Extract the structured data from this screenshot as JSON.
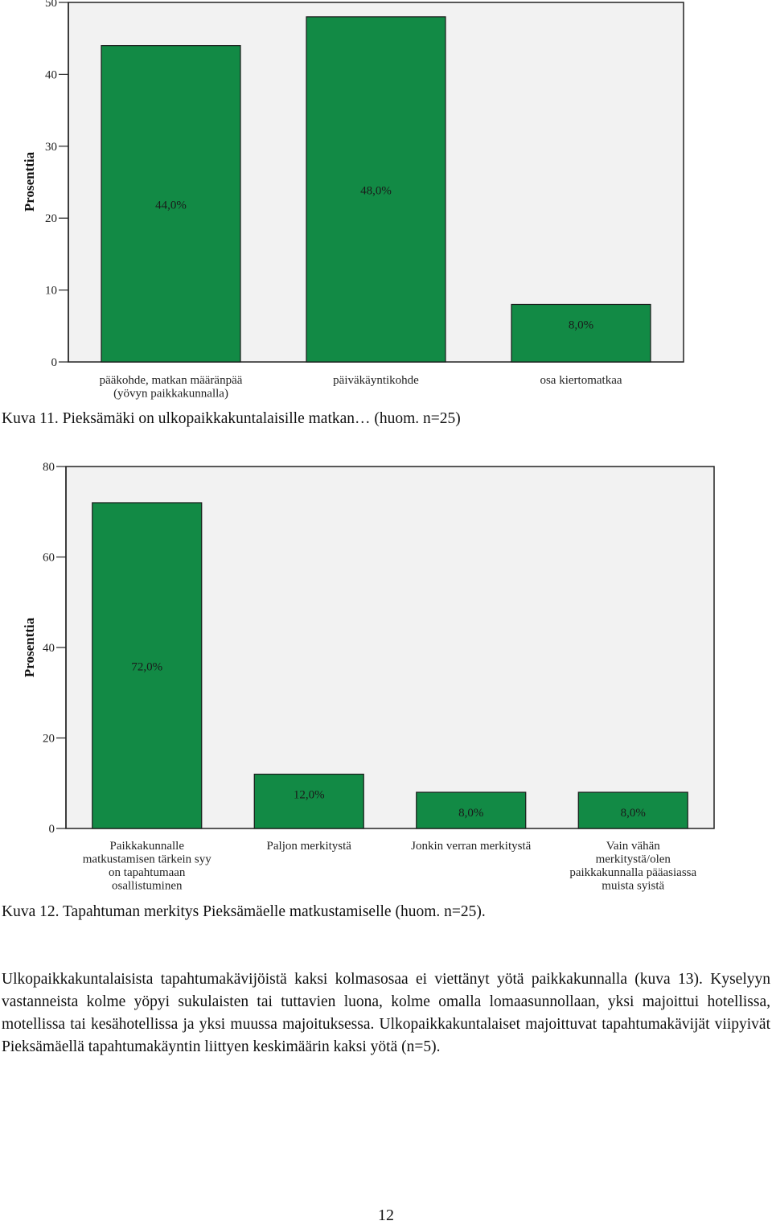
{
  "chart_data": [
    {
      "type": "bar",
      "categories": [
        "pääkohde, matkan määränpää (yövyn paikkakunnalla)",
        "päiväkäyntikohde",
        "osa kiertomatkaa"
      ],
      "category_lines": [
        [
          "pääkohde, matkan määränpää",
          "(yövyn paikkakunnalla)"
        ],
        [
          "päiväkäyntikohde"
        ],
        [
          "osa kiertomatkaa"
        ]
      ],
      "values": [
        44.0,
        48.0,
        8.0
      ],
      "data_labels": [
        "44,0%",
        "48,0%",
        "8,0%"
      ],
      "ylabel": "Prosenttia",
      "ylim": [
        0,
        50
      ],
      "yticks": [
        0,
        10,
        20,
        30,
        40,
        50
      ],
      "bar_color": "#128a45",
      "plot_background": "#f2f2f2"
    },
    {
      "type": "bar",
      "categories": [
        "Paikkakunnalle matkustamisen tärkein syy on tapahtumaan osallistuminen",
        "Paljon merkitystä",
        "Jonkin verran merkitystä",
        "Vain vähän merkitystä/olen paikkakunnalla pääasiassa muista syistä"
      ],
      "category_lines": [
        [
          "Paikkakunnalle",
          "matkustamisen tärkein syy",
          "on tapahtumaan",
          "osallistuminen"
        ],
        [
          "Paljon merkitystä"
        ],
        [
          "Jonkin verran merkitystä"
        ],
        [
          "Vain vähän",
          "merkitystä/olen",
          "paikkakunnalla pääasiassa",
          "muista syistä"
        ]
      ],
      "values": [
        72.0,
        12.0,
        8.0,
        8.0
      ],
      "data_labels": [
        "72,0%",
        "12,0%",
        "8,0%",
        "8,0%"
      ],
      "ylabel": "Prosenttia",
      "ylim": [
        0,
        80
      ],
      "yticks": [
        0,
        20,
        40,
        60,
        80
      ],
      "bar_color": "#128a45",
      "plot_background": "#f2f2f2"
    }
  ],
  "captions": {
    "fig11": "Kuva 11. Pieksämäki on ulkopaikkakuntalaisille matkan… (huom. n=25)",
    "fig12": "Kuva 12. Tapahtuman merkitys Pieksämäelle matkustamiselle (huom. n=25)."
  },
  "body_text": "Ulkopaikkakuntalaisista tapahtumakävijöistä kaksi kolmasosaa ei viettänyt yötä paikkakunnalla (kuva 13). Kyselyyn vastanneista kolme yöpyi sukulaisten tai tuttavien luona, kolme omalla lomaasunnollaan, yksi majoittui hotellissa, motellissa tai kesähotellissa ja yksi muussa majoituksessa. Ulkopaikkakuntalaiset majoittuvat tapahtumakävijät viipyivät Pieksämäellä tapahtumakäyntin liittyen keskimäärin kaksi yötä (n=5).",
  "page_number": "12"
}
